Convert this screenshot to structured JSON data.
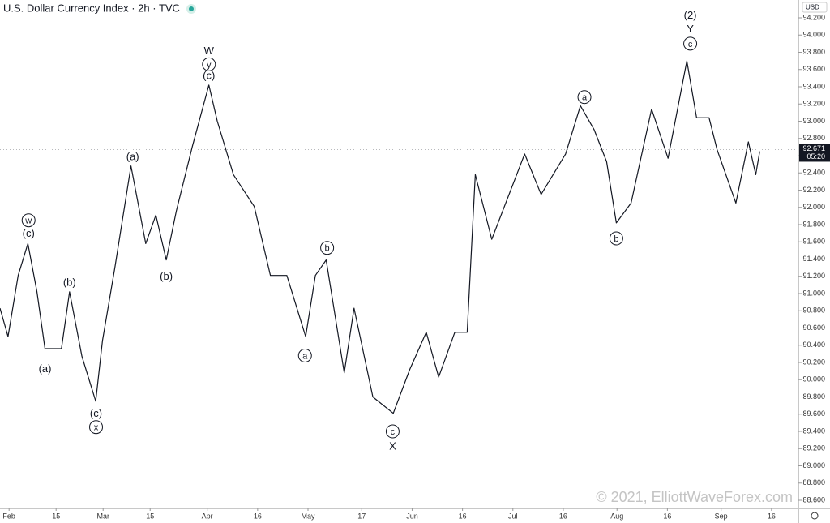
{
  "chart_data": {
    "type": "line",
    "title": "U.S. Dollar Currency Index · 2h · TVC",
    "currency": "USD",
    "watermark": "© 2021, ElliottWaveForex.com",
    "last_price": {
      "value": 92.671,
      "label": "92.671",
      "countdown": "05:20"
    },
    "color": "#131722",
    "x": [
      29.3,
      31.7,
      34.7,
      37.6,
      40.3,
      42.7,
      47.6,
      50.0,
      53.7,
      57.8,
      59.8,
      63.5,
      68.3,
      72.7,
      75.7,
      78.8,
      81.8,
      86.6,
      91.5,
      94.0,
      98.8,
      105.0,
      109.8,
      114.7,
      120.3,
      123.2,
      126.4,
      131.8,
      134.7,
      140.3,
      146.4,
      151.3,
      156.2,
      159.9,
      164.7,
      168.4,
      170.8,
      175.7,
      185.5,
      190.4,
      197.7,
      202.1,
      206.2,
      209.9,
      212.8,
      217.2,
      223.3,
      228.2,
      233.8,
      236.7,
      240.4,
      242.8,
      248.4,
      252.1,
      254.3,
      255.5
    ],
    "values": [
      90.83,
      90.5,
      91.21,
      91.58,
      91.02,
      90.36,
      90.36,
      91.02,
      90.27,
      89.75,
      90.45,
      91.3,
      92.48,
      91.58,
      91.91,
      91.39,
      91.96,
      92.71,
      93.42,
      93.0,
      92.38,
      92.01,
      91.21,
      91.21,
      90.5,
      91.21,
      91.39,
      90.08,
      90.83,
      89.8,
      89.61,
      90.12,
      90.55,
      90.03,
      90.55,
      90.55,
      92.38,
      91.63,
      92.62,
      92.15,
      92.62,
      93.18,
      92.9,
      92.53,
      91.82,
      92.05,
      93.14,
      92.57,
      93.7,
      93.04,
      93.04,
      92.67,
      92.05,
      92.76,
      92.38,
      92.65
    ],
    "xlim": [
      29.3,
      267
    ],
    "xticks": [
      {
        "value": 32,
        "label": "Feb"
      },
      {
        "value": 46,
        "label": "15"
      },
      {
        "value": 60,
        "label": "Mar"
      },
      {
        "value": 74,
        "label": "15"
      },
      {
        "value": 91,
        "label": "Apr"
      },
      {
        "value": 106,
        "label": "16"
      },
      {
        "value": 121,
        "label": "May"
      },
      {
        "value": 137,
        "label": "17"
      },
      {
        "value": 152,
        "label": "Jun"
      },
      {
        "value": 167,
        "label": "16"
      },
      {
        "value": 182,
        "label": "Jul"
      },
      {
        "value": 197,
        "label": "16"
      },
      {
        "value": 213,
        "label": "Aug"
      },
      {
        "value": 228,
        "label": "16"
      },
      {
        "value": 244,
        "label": "Sep"
      },
      {
        "value": 259,
        "label": "16"
      }
    ],
    "ylim": [
      88.506,
      94.407
    ],
    "yticks": [
      {
        "value": 88.6,
        "label": "88.600"
      },
      {
        "value": 88.8,
        "label": "88.800"
      },
      {
        "value": 89,
        "label": "89.000"
      },
      {
        "value": 89.2,
        "label": "89.200"
      },
      {
        "value": 89.4,
        "label": "89.400"
      },
      {
        "value": 89.6,
        "label": "89.600"
      },
      {
        "value": 89.8,
        "label": "89.800"
      },
      {
        "value": 90,
        "label": "90.000"
      },
      {
        "value": 90.2,
        "label": "90.200"
      },
      {
        "value": 90.4,
        "label": "90.400"
      },
      {
        "value": 90.6,
        "label": "90.600"
      },
      {
        "value": 90.8,
        "label": "90.800"
      },
      {
        "value": 91,
        "label": "91.000"
      },
      {
        "value": 91.2,
        "label": "91.200"
      },
      {
        "value": 91.4,
        "label": "91.400"
      },
      {
        "value": 91.6,
        "label": "91.600"
      },
      {
        "value": 91.8,
        "label": "91.800"
      },
      {
        "value": 92,
        "label": "92.000"
      },
      {
        "value": 92.2,
        "label": "92.200"
      },
      {
        "value": 92.4,
        "label": "92.400"
      },
      {
        "value": 92.6,
        "label": "92.600"
      },
      {
        "value": 92.8,
        "label": "92.800"
      },
      {
        "value": 93,
        "label": "93.000"
      },
      {
        "value": 93.2,
        "label": "93.200"
      },
      {
        "value": 93.4,
        "label": "93.400"
      },
      {
        "value": 93.6,
        "label": "93.600"
      },
      {
        "value": 93.8,
        "label": "93.800"
      },
      {
        "value": 94,
        "label": "94.000"
      },
      {
        "value": 94.2,
        "label": "94.200"
      }
    ],
    "annotations": [
      {
        "text": "w",
        "circled": true,
        "x": 37.8,
        "y": 91.85
      },
      {
        "text": "(c)",
        "circled": false,
        "x": 37.8,
        "y": 91.7
      },
      {
        "text": "(b)",
        "circled": false,
        "x": 50.0,
        "y": 91.13
      },
      {
        "text": "(a)",
        "circled": false,
        "x": 42.7,
        "y": 90.13
      },
      {
        "text": "(c)",
        "circled": false,
        "x": 57.9,
        "y": 89.61
      },
      {
        "text": "x",
        "circled": true,
        "x": 57.9,
        "y": 89.45
      },
      {
        "text": "(a)",
        "circled": false,
        "x": 68.8,
        "y": 92.59
      },
      {
        "text": "(b)",
        "circled": false,
        "x": 78.8,
        "y": 91.2
      },
      {
        "text": "W",
        "circled": false,
        "x": 91.5,
        "y": 93.82
      },
      {
        "text": "y",
        "circled": true,
        "x": 91.5,
        "y": 93.66
      },
      {
        "text": "(c)",
        "circled": false,
        "x": 91.5,
        "y": 93.53
      },
      {
        "text": "b",
        "circled": true,
        "x": 126.7,
        "y": 91.53
      },
      {
        "text": "a",
        "circled": true,
        "x": 120.1,
        "y": 90.28
      },
      {
        "text": "c",
        "circled": true,
        "x": 146.2,
        "y": 89.4
      },
      {
        "text": "X",
        "circled": false,
        "x": 146.2,
        "y": 89.23
      },
      {
        "text": "a",
        "circled": true,
        "x": 203.3,
        "y": 93.28
      },
      {
        "text": "b",
        "circled": true,
        "x": 212.8,
        "y": 91.64
      },
      {
        "text": "(2)",
        "circled": false,
        "x": 234.8,
        "y": 94.23
      },
      {
        "text": "Y",
        "circled": false,
        "x": 234.8,
        "y": 94.07
      },
      {
        "text": "c",
        "circled": true,
        "x": 234.8,
        "y": 93.9
      }
    ]
  }
}
